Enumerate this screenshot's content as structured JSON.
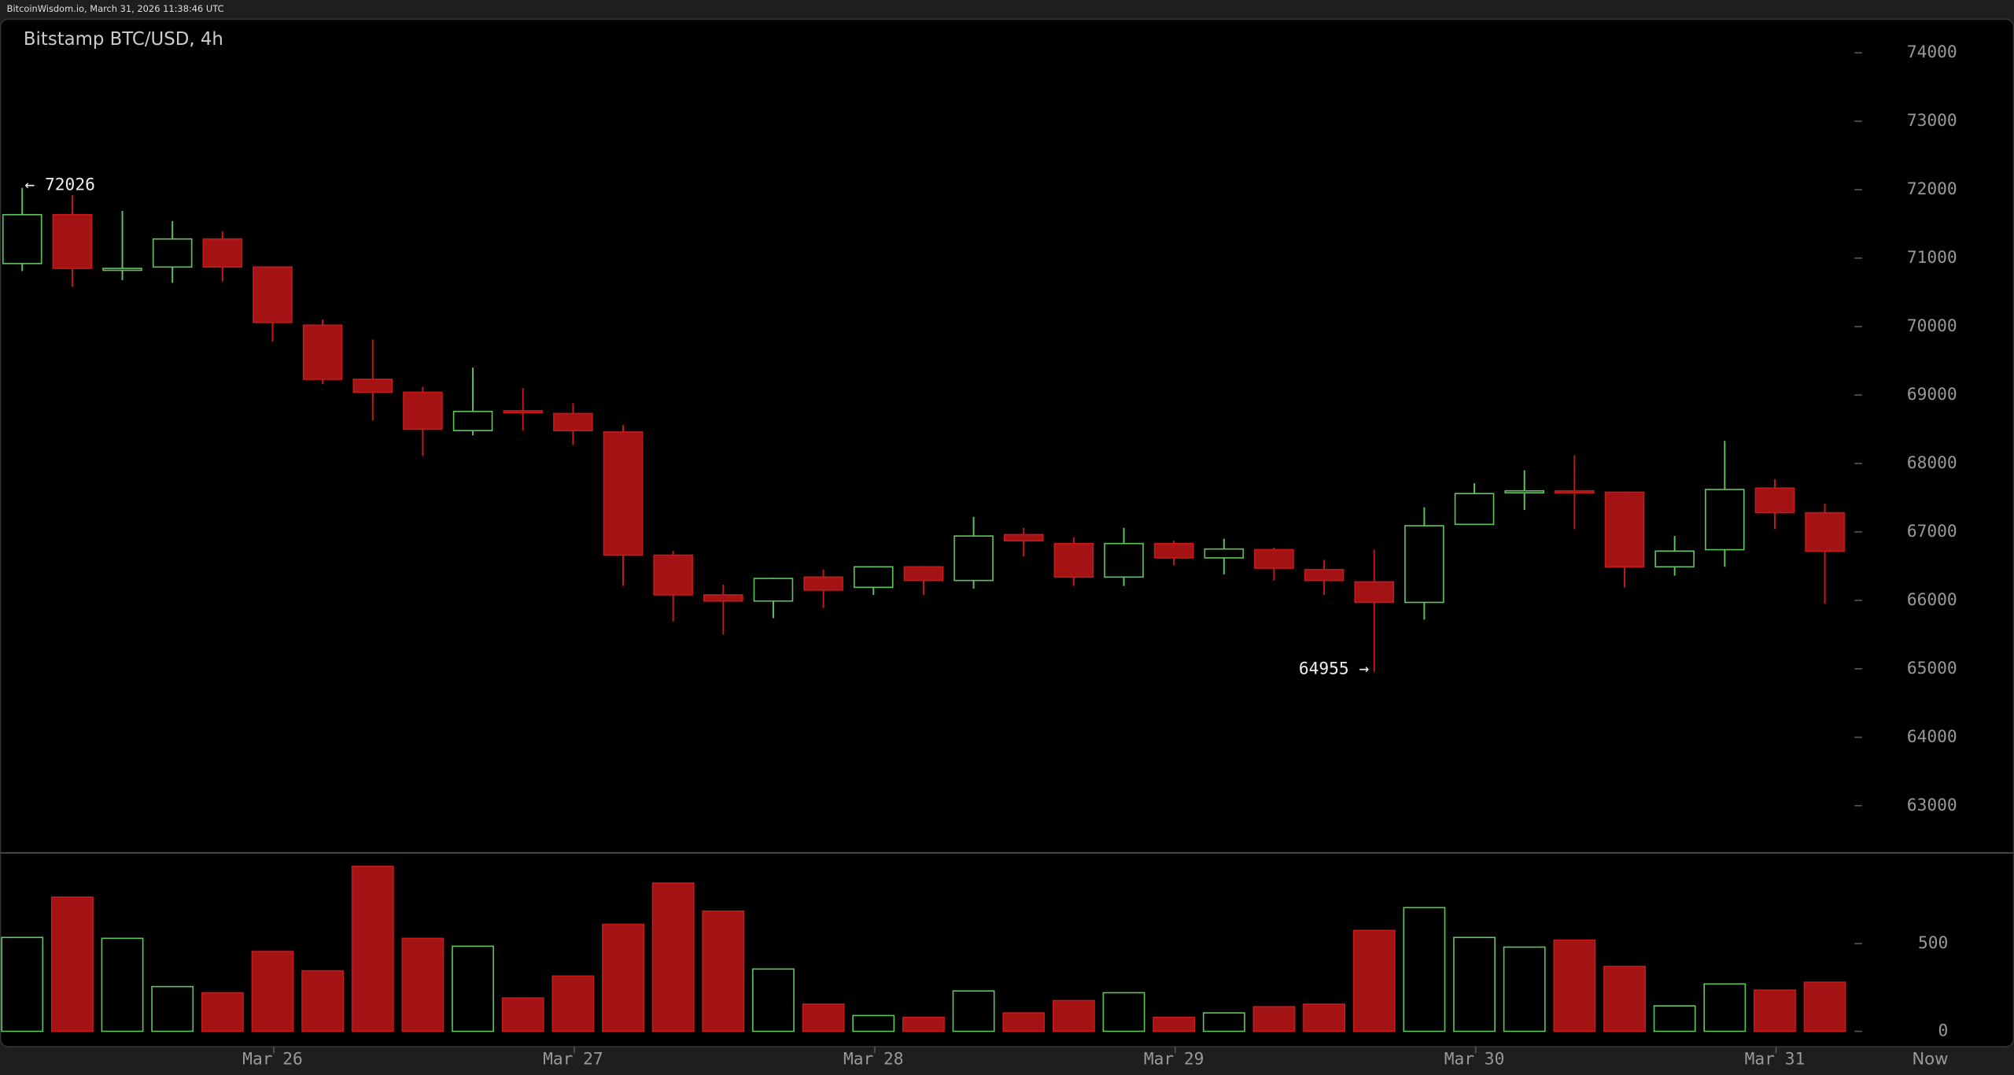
{
  "header": {
    "text": "BitcoinWisdom.io, March 31, 2026 11:38:46 UTC"
  },
  "chart_data": {
    "type": "candlestick",
    "title": "Bitstamp BTC/USD, 4h",
    "categories": [
      null,
      null,
      null,
      null,
      null,
      "Mar 26",
      null,
      null,
      null,
      null,
      null,
      "Mar 27",
      null,
      null,
      null,
      null,
      null,
      "Mar 28",
      null,
      null,
      null,
      null,
      null,
      "Mar 29",
      null,
      null,
      null,
      null,
      null,
      "Mar 30",
      null,
      null,
      null,
      null,
      null,
      "Mar 31",
      null
    ],
    "now_label": "Now",
    "open": [
      70920,
      71635,
      70840,
      70870,
      71280,
      70870,
      70020,
      69230,
      69040,
      68480,
      68770,
      68730,
      68460,
      66660,
      66080,
      65990,
      66340,
      66190,
      66490,
      66290,
      66960,
      66830,
      66340,
      66830,
      66620,
      66740,
      66450,
      66270,
      65970,
      67110,
      67580,
      67600,
      67580,
      66490,
      66740,
      67640,
      67280
    ],
    "high": [
      72026,
      71920,
      71690,
      71540,
      71390,
      70880,
      70100,
      69810,
      69120,
      69400,
      69100,
      68880,
      68560,
      66720,
      66230,
      66330,
      66450,
      66500,
      66500,
      67220,
      67060,
      66920,
      67060,
      66870,
      66900,
      66770,
      66590,
      66740,
      67360,
      67710,
      67900,
      68120,
      67590,
      66940,
      68330,
      67770,
      67410
    ],
    "low": [
      70810,
      70580,
      70680,
      70640,
      70660,
      69780,
      69160,
      68630,
      68110,
      68410,
      68480,
      68270,
      66210,
      65690,
      65500,
      65740,
      65890,
      66080,
      66080,
      66170,
      66640,
      66210,
      66210,
      66510,
      66380,
      66290,
      66080,
      64955,
      65720,
      67110,
      67320,
      67040,
      66190,
      66360,
      66490,
      67040,
      65950
    ],
    "close": [
      71635,
      70850,
      70850,
      71280,
      70870,
      70060,
      69230,
      69040,
      68500,
      68760,
      68750,
      68480,
      66660,
      66080,
      65990,
      66320,
      66150,
      66490,
      66290,
      66940,
      66870,
      66340,
      66830,
      66620,
      66750,
      66470,
      66290,
      65970,
      67090,
      67560,
      67600,
      67590,
      66490,
      66720,
      67620,
      67280,
      66720
    ],
    "up_color": "#5fc25f",
    "down_color": "#a31313",
    "ylim": [
      62330,
      74490
    ],
    "yticks": [
      63000,
      64000,
      65000,
      66000,
      67000,
      68000,
      69000,
      70000,
      71000,
      72000,
      73000,
      74000
    ],
    "annotations": [
      {
        "label": "← 72026",
        "value": 72026
      },
      {
        "label": "64955 →",
        "value": 64955
      }
    ],
    "volume": {
      "values": [
        535,
        765,
        530,
        255,
        220,
        455,
        345,
        940,
        530,
        485,
        190,
        315,
        610,
        845,
        685,
        355,
        155,
        90,
        80,
        230,
        105,
        175,
        220,
        80,
        105,
        140,
        155,
        575,
        705,
        535,
        480,
        520,
        370,
        145,
        270,
        235,
        280
      ],
      "ylim": [
        0,
        1010
      ],
      "yticks": [
        0,
        500
      ]
    }
  }
}
